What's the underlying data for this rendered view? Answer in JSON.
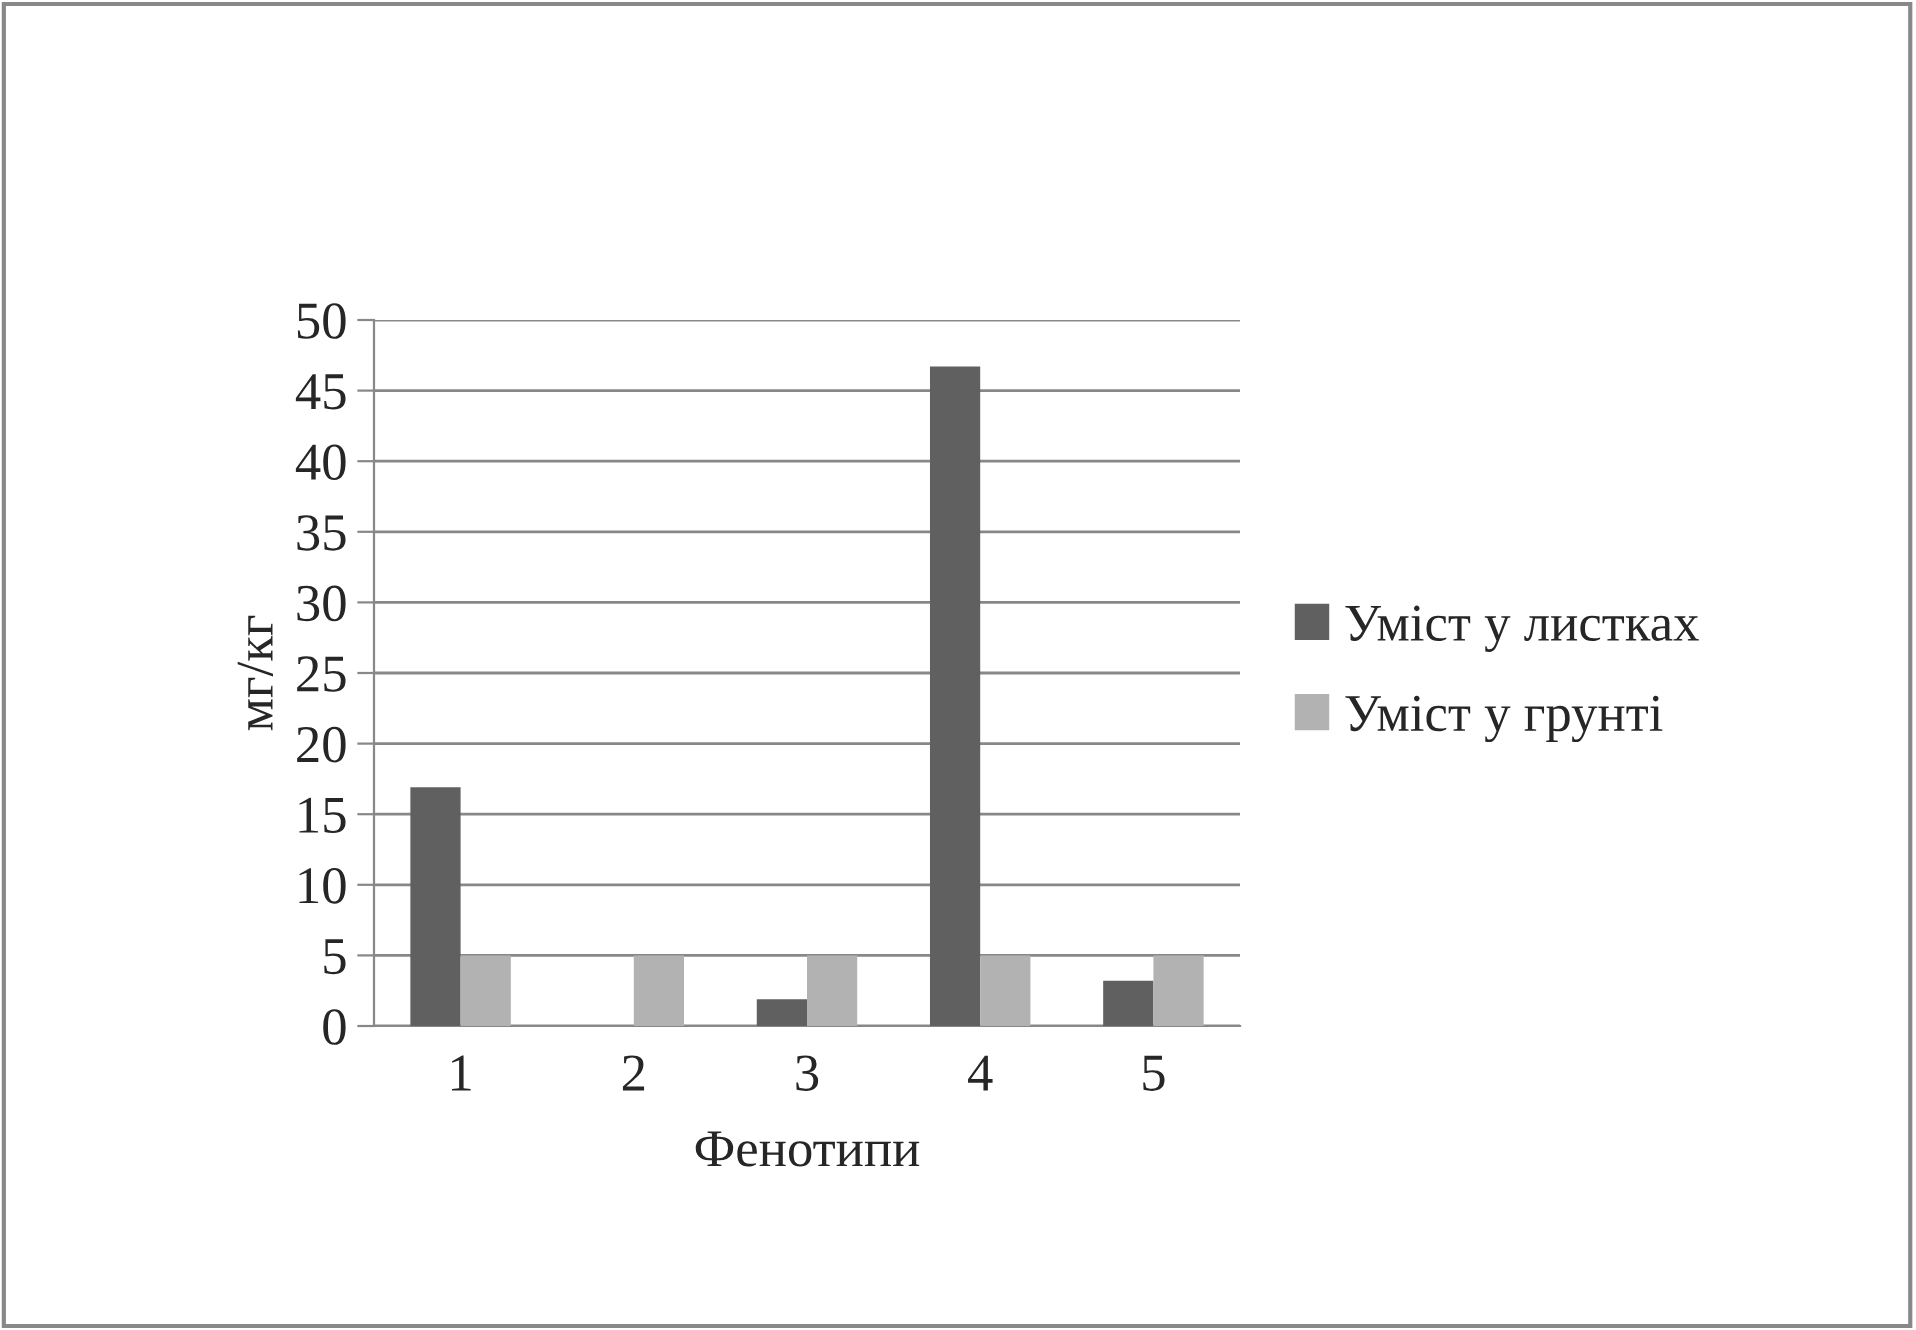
{
  "chart_data": {
    "type": "bar",
    "xlabel": "Фенотипи",
    "ylabel": "мг/кг",
    "categories": [
      "1",
      "2",
      "3",
      "4",
      "5"
    ],
    "series": [
      {
        "name": "Уміст у листках",
        "color": "#606060",
        "values": [
          16.9,
          null,
          1.9,
          46.7,
          3.2
        ]
      },
      {
        "name": "Уміст у грунті",
        "color": "#b2b2b2",
        "values": [
          5,
          5,
          5,
          5,
          5
        ]
      }
    ],
    "ylim": [
      0,
      50
    ],
    "yticks": [
      0,
      5,
      10,
      15,
      20,
      25,
      30,
      35,
      40,
      45,
      50
    ],
    "grid": "y",
    "legend": "right"
  }
}
